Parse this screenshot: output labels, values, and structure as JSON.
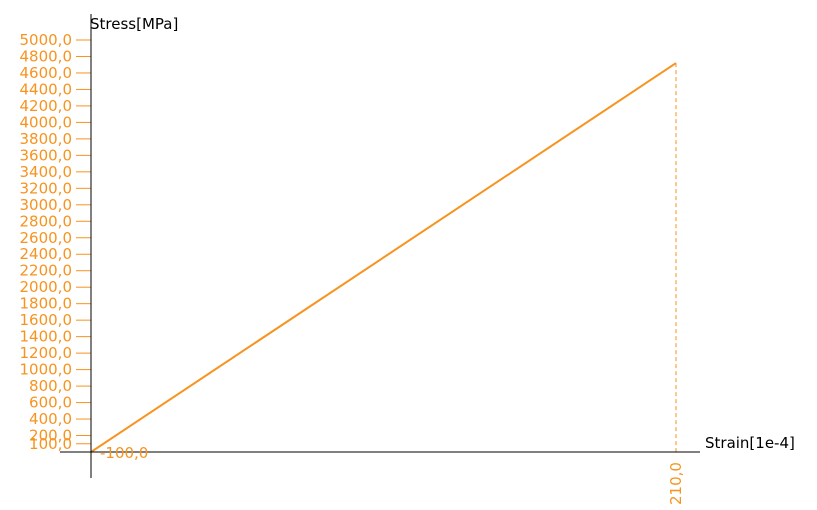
{
  "chart_data": {
    "type": "line",
    "title": "",
    "xlabel": "Strain[1e-4]",
    "ylabel": "Stress[MPa]",
    "xlim": [
      0,
      220
    ],
    "ylim": [
      0,
      5000
    ],
    "grid": false,
    "legend": "none",
    "colors": {
      "series": "#f7931e",
      "axes": "#000000"
    },
    "y_ticks": [
      100,
      200,
      400,
      600,
      800,
      1000,
      1200,
      1400,
      1600,
      1800,
      2000,
      2200,
      2400,
      2600,
      2800,
      3000,
      3200,
      3400,
      3600,
      3800,
      4000,
      4200,
      4400,
      4600,
      4800,
      5000
    ],
    "y_tick_labels": [
      "100,0",
      "200,0",
      "400,0",
      "600,0",
      "800,0",
      "1000,0",
      "1200,0",
      "1400,0",
      "1600,0",
      "1800,0",
      "2000,0",
      "2200,0",
      "2400,0",
      "2600,0",
      "2800,0",
      "3000,0",
      "3200,0",
      "3400,0",
      "3600,0",
      "3800,0",
      "4000,0",
      "4200,0",
      "4400,0",
      "4600,0",
      "4800,0",
      "5000,0"
    ],
    "x_marker": {
      "value": 210,
      "label": "210,0"
    },
    "y_marker_label": "-100,0",
    "series": [
      {
        "x": [
          0,
          210
        ],
        "y": [
          0,
          4720
        ]
      }
    ]
  }
}
